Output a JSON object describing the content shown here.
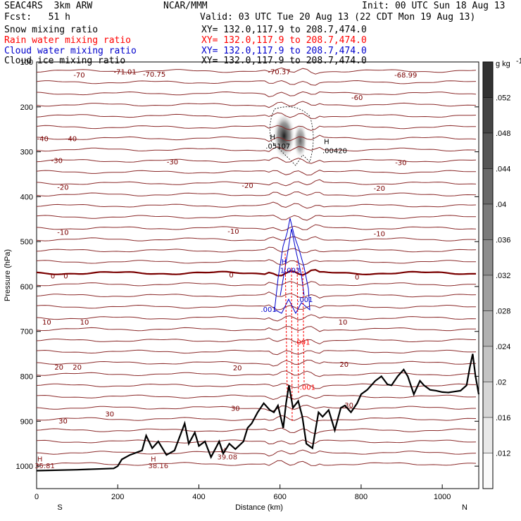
{
  "header": {
    "model": "SEAC4RS  3km ARW",
    "org": "NCAR/MMM",
    "init": "Init: 00 UTC Sun 18 Aug 13",
    "fcst": "Fcst:   51 h",
    "valid": "Valid: 03 UTC Tue 20 Aug 13 (22 CDT Mon 19 Aug 13)",
    "fields": [
      {
        "label": "Snow mixing ratio",
        "xy": "XY= 132.0,117.9 to 208.7,474.0",
        "color": "#000000"
      },
      {
        "label": "Rain water mixing ratio",
        "xy": "XY= 132.0,117.9 to 208.7,474.0",
        "color": "#ff0000"
      },
      {
        "label": "Cloud water mixing ratio",
        "xy": "XY= 132.0,117.9 to 208.7,474.0",
        "color": "#0000cc"
      },
      {
        "label": "Cloud ice mixing ratio",
        "xy": "XY= 132.0,117.9 to 208.7,474.0",
        "color": "#000000"
      }
    ]
  },
  "chart_data": {
    "type": "contour cross-section",
    "xlabel": "Distance (km)",
    "ylabel": "Pressure (hPa)",
    "xlim": [
      0,
      1090
    ],
    "ylim": [
      1050,
      100
    ],
    "x_ticks": [
      0,
      200,
      400,
      600,
      800,
      1000
    ],
    "y_ticks": [
      100,
      200,
      300,
      400,
      500,
      600,
      700,
      800,
      900,
      1000
    ],
    "x_ends": {
      "left": "S",
      "right": "N"
    },
    "colorbar": {
      "unit": "g kg",
      "unit_exp": "-1",
      "ticks": [
        ".052",
        ".048",
        ".044",
        ".04",
        ".036",
        ".032",
        ".028",
        ".024",
        ".02",
        ".016",
        ".012"
      ],
      "tick_values": [
        0.052,
        0.048,
        0.044,
        0.04,
        0.036,
        0.032,
        0.028,
        0.024,
        0.02,
        0.016,
        0.012
      ],
      "min": 0.008,
      "max": 0.056
    },
    "temperature_labels": [
      {
        "text": "-70",
        "x": 105,
        "p": 130
      },
      {
        "text": "-71.01",
        "x": 218,
        "p": 123
      },
      {
        "text": "-70.75",
        "x": 290,
        "p": 128
      },
      {
        "text": "-70.37",
        "x": 598,
        "p": 123
      },
      {
        "text": "-68.99",
        "x": 910,
        "p": 130
      },
      {
        "text": "-60",
        "x": 790,
        "p": 180
      },
      {
        "text": "-40",
        "x": 15,
        "p": 272
      },
      {
        "text": "-40",
        "x": 85,
        "p": 272
      },
      {
        "text": "-30",
        "x": 50,
        "p": 320
      },
      {
        "text": "-30",
        "x": 335,
        "p": 323
      },
      {
        "text": "-30",
        "x": 898,
        "p": 325
      },
      {
        "text": "-20",
        "x": 65,
        "p": 380
      },
      {
        "text": "-20",
        "x": 520,
        "p": 376
      },
      {
        "text": "-20",
        "x": 845,
        "p": 382
      },
      {
        "text": "-10",
        "x": 65,
        "p": 480
      },
      {
        "text": "-10",
        "x": 485,
        "p": 478
      },
      {
        "text": "-10",
        "x": 845,
        "p": 483
      },
      {
        "text": "0",
        "x": 40,
        "p": 577
      },
      {
        "text": "0",
        "x": 72,
        "p": 577
      },
      {
        "text": "0",
        "x": 480,
        "p": 575
      },
      {
        "text": "0",
        "x": 790,
        "p": 580
      },
      {
        "text": "10",
        "x": 25,
        "p": 680
      },
      {
        "text": "10",
        "x": 118,
        "p": 680
      },
      {
        "text": "10",
        "x": 755,
        "p": 680
      },
      {
        "text": "20",
        "x": 55,
        "p": 780
      },
      {
        "text": "20",
        "x": 100,
        "p": 780
      },
      {
        "text": "20",
        "x": 495,
        "p": 782
      },
      {
        "text": "20",
        "x": 758,
        "p": 774
      },
      {
        "text": "30",
        "x": 65,
        "p": 900
      },
      {
        "text": "30",
        "x": 180,
        "p": 885
      },
      {
        "text": "30",
        "x": 490,
        "p": 872
      },
      {
        "text": "30",
        "x": 770,
        "p": 865
      }
    ],
    "extrema_labels": [
      {
        "text": "H",
        "x": 582,
        "p": 268,
        "color": "#000000"
      },
      {
        "text": ".05107",
        "x": 595,
        "p": 288,
        "color": "#000000"
      },
      {
        "text": "H",
        "x": 715,
        "p": 278,
        "color": "#000000"
      },
      {
        "text": ".00420",
        "x": 735,
        "p": 298,
        "color": "#000000"
      },
      {
        "text": "H",
        "x": 610,
        "p": 545,
        "color": "#0000cc"
      },
      {
        "text": "1.003",
        "x": 625,
        "p": 565,
        "color": "#0000cc"
      },
      {
        "text": ".001",
        "x": 572,
        "p": 652,
        "color": "#0000cc"
      },
      {
        "text": ".001",
        "x": 662,
        "p": 630,
        "color": "#0000cc"
      },
      {
        "text": ".001",
        "x": 655,
        "p": 725,
        "color": "#ff0000"
      },
      {
        "text": ".001",
        "x": 668,
        "p": 825,
        "color": "#ff0000"
      },
      {
        "text": "H",
        "x": 8,
        "p": 985,
        "color": "#8b1a1a"
      },
      {
        "text": "35.81",
        "x": 20,
        "p": 1000,
        "color": "#8b1a1a"
      },
      {
        "text": "H",
        "x": 288,
        "p": 985,
        "color": "#8b1a1a"
      },
      {
        "text": "38.16",
        "x": 300,
        "p": 1000,
        "color": "#8b1a1a"
      },
      {
        "text": "H",
        "x": 460,
        "p": 965,
        "color": "#8b1a1a"
      },
      {
        "text": "39.08",
        "x": 470,
        "p": 980,
        "color": "#8b1a1a"
      }
    ],
    "terrain": {
      "x": [
        0,
        100,
        190,
        200,
        210,
        230,
        260,
        270,
        285,
        300,
        320,
        340,
        365,
        375,
        390,
        400,
        415,
        430,
        450,
        460,
        475,
        490,
        510,
        520,
        530,
        545,
        560,
        575,
        585,
        595,
        608,
        615,
        622,
        632,
        645,
        655,
        665,
        680,
        695,
        705,
        720,
        735,
        750,
        760,
        775,
        790,
        800,
        815,
        825,
        835,
        850,
        865,
        875,
        890,
        905,
        915,
        930,
        945,
        955,
        970,
        985,
        1000,
        1015,
        1030,
        1045,
        1060,
        1068,
        1075,
        1082,
        1090
      ],
      "p": [
        1010,
        1008,
        1005,
        1000,
        985,
        975,
        965,
        932,
        960,
        945,
        975,
        965,
        905,
        950,
        925,
        955,
        945,
        980,
        945,
        972,
        950,
        962,
        945,
        915,
        905,
        880,
        860,
        875,
        880,
        865,
        915,
        860,
        820,
        870,
        855,
        890,
        950,
        960,
        880,
        890,
        875,
        920,
        870,
        865,
        880,
        860,
        840,
        830,
        820,
        810,
        800,
        818,
        820,
        800,
        785,
        800,
        840,
        810,
        820,
        830,
        832,
        835,
        836,
        834,
        832,
        820,
        780,
        750,
        800,
        840
      ]
    }
  }
}
